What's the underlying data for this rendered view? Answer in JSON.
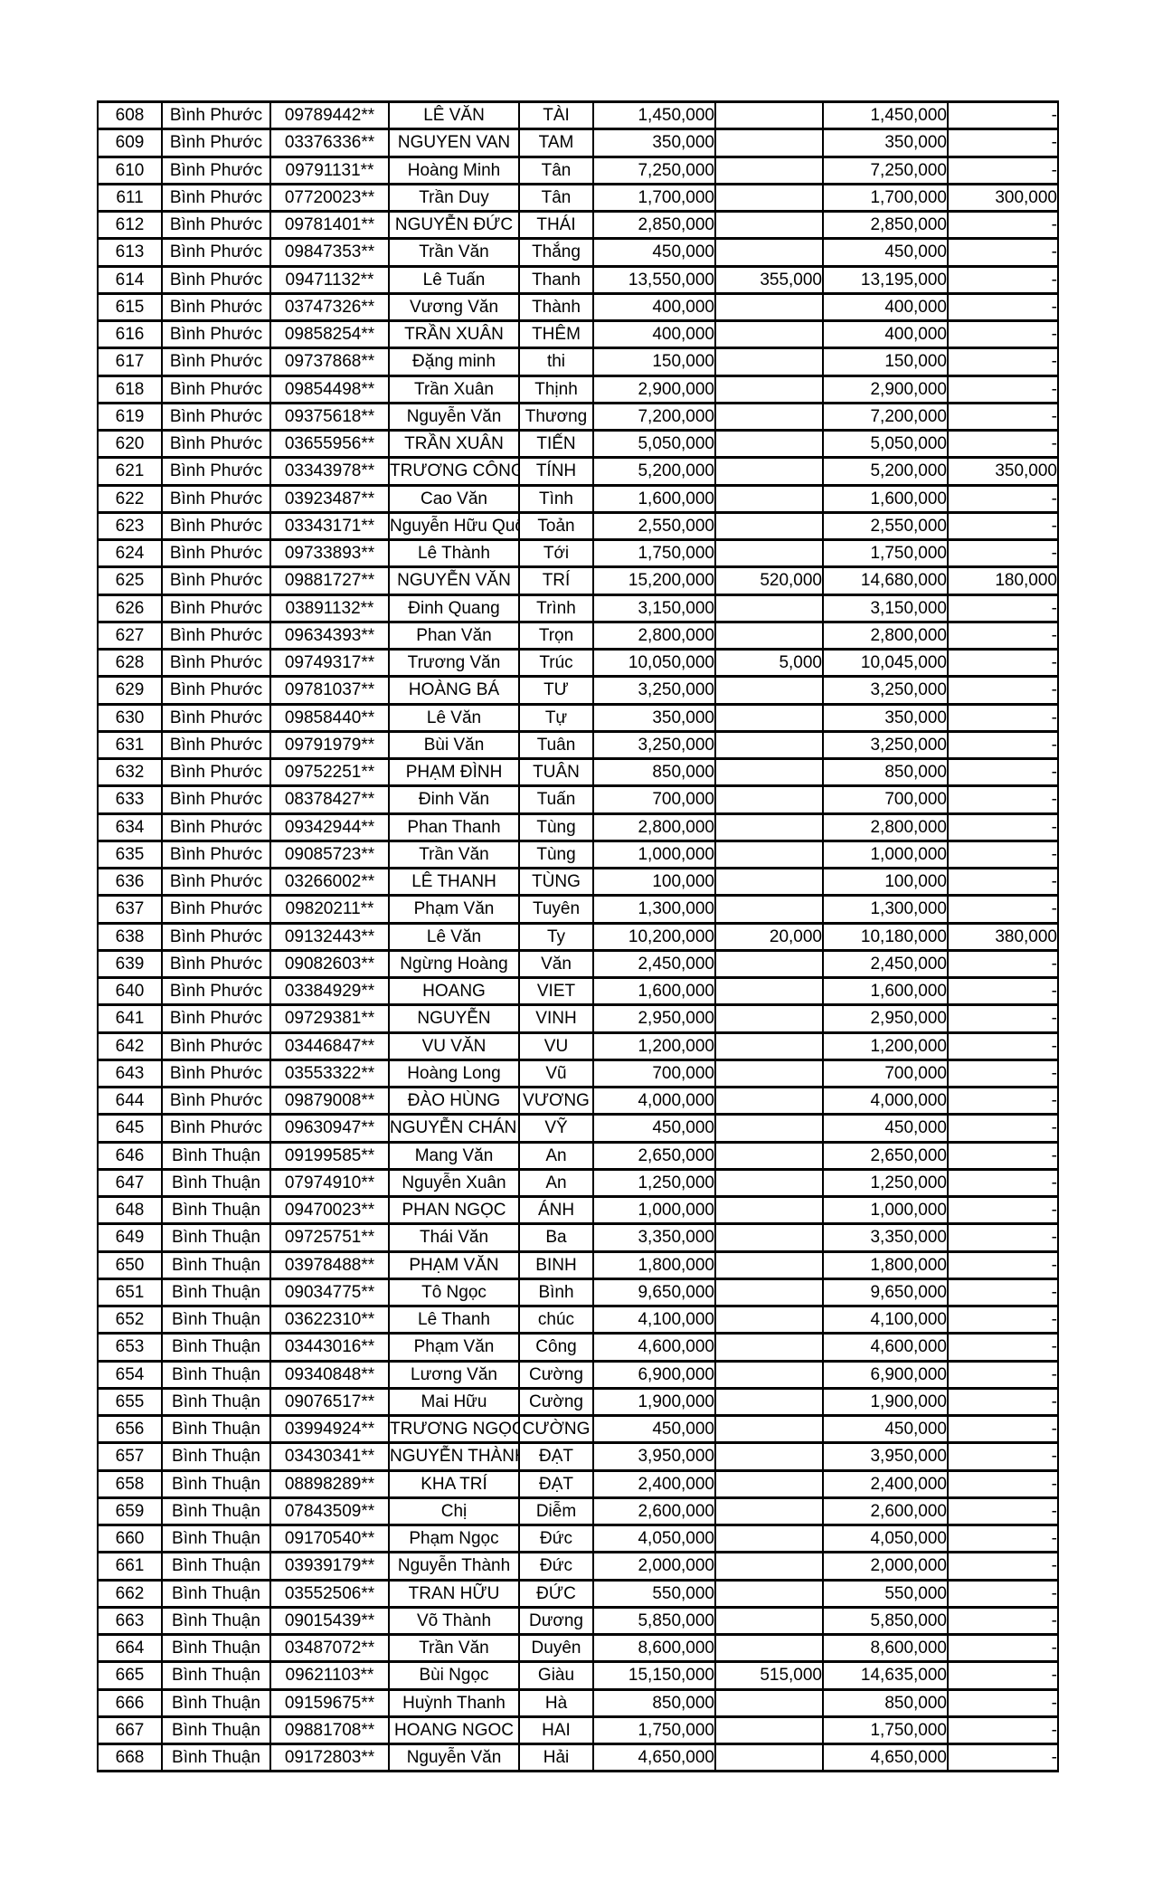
{
  "table": {
    "column_keys": [
      "stt",
      "province",
      "phone",
      "middle_name",
      "given_name",
      "amount",
      "deduction",
      "net_amount",
      "note"
    ],
    "rows": [
      [
        "608",
        "Bình Phước",
        "09789442**",
        "LÊ VĂN",
        "TÀI",
        "1,450,000",
        "",
        "1,450,000",
        "-"
      ],
      [
        "609",
        "Bình Phước",
        "03376336**",
        "NGUYEN VAN",
        "TAM",
        "350,000",
        "",
        "350,000",
        "-"
      ],
      [
        "610",
        "Bình Phước",
        "09791131**",
        "Hoàng Minh",
        "Tân",
        "7,250,000",
        "",
        "7,250,000",
        "-"
      ],
      [
        "611",
        "Bình Phước",
        "07720023**",
        "Trần Duy",
        "Tân",
        "1,700,000",
        "",
        "1,700,000",
        "300,000"
      ],
      [
        "612",
        "Bình Phước",
        "09781401**",
        "NGUYỄN ĐỨC",
        "THÁI",
        "2,850,000",
        "",
        "2,850,000",
        "-"
      ],
      [
        "613",
        "Bình Phước",
        "09847353**",
        "Trần Văn",
        "Thắng",
        "450,000",
        "",
        "450,000",
        "-"
      ],
      [
        "614",
        "Bình Phước",
        "09471132**",
        "Lê Tuấn",
        "Thanh",
        "13,550,000",
        "355,000",
        "13,195,000",
        "-"
      ],
      [
        "615",
        "Bình Phước",
        "03747326**",
        "Vương Văn",
        "Thành",
        "400,000",
        "",
        "400,000",
        "-"
      ],
      [
        "616",
        "Bình Phước",
        "09858254**",
        "TRẦN XUÂN",
        "THÊM",
        "400,000",
        "",
        "400,000",
        "-"
      ],
      [
        "617",
        "Bình Phước",
        "09737868**",
        "Đặng minh",
        "thi",
        "150,000",
        "",
        "150,000",
        "-"
      ],
      [
        "618",
        "Bình Phước",
        "09854498**",
        "Trần Xuân",
        "Thịnh",
        "2,900,000",
        "",
        "2,900,000",
        "-"
      ],
      [
        "619",
        "Bình Phước",
        "09375618**",
        "Nguyễn  Văn",
        "Thương",
        "7,200,000",
        "",
        "7,200,000",
        "-"
      ],
      [
        "620",
        "Bình Phước",
        "03655956**",
        "TRẦN XUÂN",
        "TIẾN",
        "5,050,000",
        "",
        "5,050,000",
        "-"
      ],
      [
        "621",
        "Bình Phước",
        "03343978**",
        "TRƯƠNG CÔNG",
        "TÍNH",
        "5,200,000",
        "",
        "5,200,000",
        "350,000"
      ],
      [
        "622",
        "Bình Phước",
        "03923487**",
        "Cao Văn",
        "Tình",
        "1,600,000",
        "",
        "1,600,000",
        "-"
      ],
      [
        "623",
        "Bình Phước",
        "03343171**",
        "Nguyễn Hữu Quốc",
        "Toản",
        "2,550,000",
        "",
        "2,550,000",
        "-"
      ],
      [
        "624",
        "Bình Phước",
        "09733893**",
        "Lê Thành",
        "Tới",
        "1,750,000",
        "",
        "1,750,000",
        "-"
      ],
      [
        "625",
        "Bình Phước",
        "09881727**",
        "NGUYỄN VĂN",
        "TRÍ",
        "15,200,000",
        "520,000",
        "14,680,000",
        "180,000"
      ],
      [
        "626",
        "Bình Phước",
        "03891132**",
        "Đinh Quang",
        "Trình",
        "3,150,000",
        "",
        "3,150,000",
        "-"
      ],
      [
        "627",
        "Bình Phước",
        "09634393**",
        "Phan Văn",
        "Trọn",
        "2,800,000",
        "",
        "2,800,000",
        "-"
      ],
      [
        "628",
        "Bình Phước",
        "09749317**",
        "Trương Văn",
        "Trúc",
        "10,050,000",
        "5,000",
        "10,045,000",
        "-"
      ],
      [
        "629",
        "Bình Phước",
        "09781037**",
        "HOÀNG BÁ",
        "TƯ",
        "3,250,000",
        "",
        "3,250,000",
        "-"
      ],
      [
        "630",
        "Bình Phước",
        "09858440**",
        "Lê Văn",
        "Tự",
        "350,000",
        "",
        "350,000",
        "-"
      ],
      [
        "631",
        "Bình Phước",
        "09791979**",
        "Bùi  Văn",
        "Tuân",
        "3,250,000",
        "",
        "3,250,000",
        "-"
      ],
      [
        "632",
        "Bình Phước",
        "09752251**",
        "PHẠM ĐÌNH",
        "TUÂN",
        "850,000",
        "",
        "850,000",
        "-"
      ],
      [
        "633",
        "Bình Phước",
        "08378427**",
        "Đinh Văn",
        "Tuấn",
        "700,000",
        "",
        "700,000",
        "-"
      ],
      [
        "634",
        "Bình Phước",
        "09342944**",
        "Phan Thanh",
        "Tùng",
        "2,800,000",
        "",
        "2,800,000",
        "-"
      ],
      [
        "635",
        "Bình Phước",
        "09085723**",
        "Trần Văn",
        "Tùng",
        "1,000,000",
        "",
        "1,000,000",
        "-"
      ],
      [
        "636",
        "Bình Phước",
        "03266002**",
        "LÊ THANH",
        "TÙNG",
        "100,000",
        "",
        "100,000",
        "-"
      ],
      [
        "637",
        "Bình Phước",
        "09820211**",
        "Phạm Văn",
        "Tuyên",
        "1,300,000",
        "",
        "1,300,000",
        "-"
      ],
      [
        "638",
        "Bình Phước",
        "09132443**",
        "Lê Văn",
        "Ty",
        "10,200,000",
        "20,000",
        "10,180,000",
        "380,000"
      ],
      [
        "639",
        "Bình Phước",
        "09082603**",
        "Ngừng Hoàng",
        "Văn",
        "2,450,000",
        "",
        "2,450,000",
        "-"
      ],
      [
        "640",
        "Bình Phước",
        "03384929**",
        "HOANG",
        "VIET",
        "1,600,000",
        "",
        "1,600,000",
        "-"
      ],
      [
        "641",
        "Bình Phước",
        "09729381**",
        "NGUYỄN",
        "VINH",
        "2,950,000",
        "",
        "2,950,000",
        "-"
      ],
      [
        "642",
        "Bình Phước",
        "03446847**",
        "VU VĂN",
        "VU",
        "1,200,000",
        "",
        "1,200,000",
        "-"
      ],
      [
        "643",
        "Bình Phước",
        "03553322**",
        "Hoàng Long",
        "Vũ",
        "700,000",
        "",
        "700,000",
        "-"
      ],
      [
        "644",
        "Bình Phước",
        "09879008**",
        "ĐÀO HÙNG",
        "VƯƠNG",
        "4,000,000",
        "",
        "4,000,000",
        "-"
      ],
      [
        "645",
        "Bình Phước",
        "09630947**",
        "NGUYỄN CHÁNH",
        "VỸ",
        "450,000",
        "",
        "450,000",
        "-"
      ],
      [
        "646",
        "Bình Thuận",
        "09199585**",
        "Mang Văn",
        "An",
        "2,650,000",
        "",
        "2,650,000",
        "-"
      ],
      [
        "647",
        "Bình Thuận",
        "07974910**",
        "Nguyễn Xuân",
        "An",
        "1,250,000",
        "",
        "1,250,000",
        "-"
      ],
      [
        "648",
        "Bình Thuận",
        "09470023**",
        "PHAN NGỌC",
        "ÁNH",
        "1,000,000",
        "",
        "1,000,000",
        "-"
      ],
      [
        "649",
        "Bình Thuận",
        "09725751**",
        "Thái Văn",
        "Ba",
        "3,350,000",
        "",
        "3,350,000",
        "-"
      ],
      [
        "650",
        "Bình Thuận",
        "03978488**",
        "PHẠM VĂN",
        "BINH",
        "1,800,000",
        "",
        "1,800,000",
        "-"
      ],
      [
        "651",
        "Bình Thuận",
        "09034775**",
        "Tô Ngọc",
        "Bình",
        "9,650,000",
        "",
        "9,650,000",
        "-"
      ],
      [
        "652",
        "Bình Thuận",
        "03622310**",
        "Lê Thanh",
        "chúc",
        "4,100,000",
        "",
        "4,100,000",
        "-"
      ],
      [
        "653",
        "Bình Thuận",
        "03443016**",
        "Phạm Văn",
        "Công",
        "4,600,000",
        "",
        "4,600,000",
        "-"
      ],
      [
        "654",
        "Bình Thuận",
        "09340848**",
        "Lương Văn",
        "Cường",
        "6,900,000",
        "",
        "6,900,000",
        "-"
      ],
      [
        "655",
        "Bình Thuận",
        "09076517**",
        "Mai Hữu",
        "Cường",
        "1,900,000",
        "",
        "1,900,000",
        "-"
      ],
      [
        "656",
        "Bình Thuận",
        "03994924**",
        "TRƯƠNG NGỌC",
        "CƯỜNG",
        "450,000",
        "",
        "450,000",
        "-"
      ],
      [
        "657",
        "Bình Thuận",
        "03430341**",
        "NGUYỄN THÀNH",
        "ĐẠT",
        "3,950,000",
        "",
        "3,950,000",
        "-"
      ],
      [
        "658",
        "Bình Thuận",
        "08898289**",
        "KHA TRÍ",
        "ĐẠT",
        "2,400,000",
        "",
        "2,400,000",
        "-"
      ],
      [
        "659",
        "Bình Thuận",
        "07843509**",
        "Chị",
        "Diễm",
        "2,600,000",
        "",
        "2,600,000",
        "-"
      ],
      [
        "660",
        "Bình Thuận",
        "09170540**",
        "Phạm Ngọc",
        "Đức",
        "4,050,000",
        "",
        "4,050,000",
        "-"
      ],
      [
        "661",
        "Bình Thuận",
        "03939179**",
        "Nguyễn Thành",
        "Đức",
        "2,000,000",
        "",
        "2,000,000",
        "-"
      ],
      [
        "662",
        "Bình Thuận",
        "03552506**",
        "TRAN HỮU",
        "ĐỨC",
        "550,000",
        "",
        "550,000",
        "-"
      ],
      [
        "663",
        "Bình Thuận",
        "09015439**",
        "Võ Thành",
        "Dương",
        "5,850,000",
        "",
        "5,850,000",
        "-"
      ],
      [
        "664",
        "Bình Thuận",
        "03487072**",
        "Trần Văn",
        "Duyên",
        "8,600,000",
        "",
        "8,600,000",
        "-"
      ],
      [
        "665",
        "Bình Thuận",
        "09621103**",
        "Bùi Ngọc",
        "Giàu",
        "15,150,000",
        "515,000",
        "14,635,000",
        "-"
      ],
      [
        "666",
        "Bình Thuận",
        "09159675**",
        "Huỳnh  Thanh",
        "Hà",
        "850,000",
        "",
        "850,000",
        "-"
      ],
      [
        "667",
        "Bình Thuận",
        "09881708**",
        "HOANG NGOC",
        "HAI",
        "1,750,000",
        "",
        "1,750,000",
        "-"
      ],
      [
        "668",
        "Bình Thuận",
        "09172803**",
        "Nguyễn Văn",
        "Hải",
        "4,650,000",
        "",
        "4,650,000",
        "-"
      ]
    ]
  }
}
